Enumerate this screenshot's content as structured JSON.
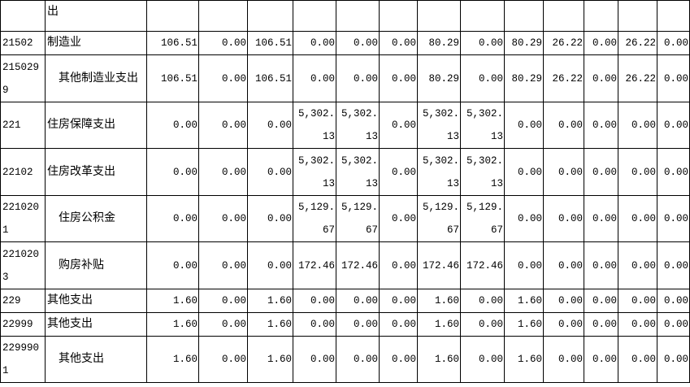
{
  "table": {
    "rows": [
      {
        "name": "出"
      },
      {
        "code": "21502",
        "name": "制造业",
        "values": [
          "106.51",
          "0.00",
          "106.51",
          "0.00",
          "0.00",
          "0.00",
          "80.29",
          "0.00",
          "80.29",
          "26.22",
          "0.00",
          "26.22",
          "0.00"
        ]
      },
      {
        "code": "2150299",
        "name": "其他制造业支出",
        "values": [
          "106.51",
          "0.00",
          "106.51",
          "0.00",
          "0.00",
          "0.00",
          "80.29",
          "0.00",
          "80.29",
          "26.22",
          "0.00",
          "26.22",
          "0.00"
        ]
      },
      {
        "code": "221",
        "name": "住房保障支出",
        "values": [
          "0.00",
          "0.00",
          "0.00",
          "5,302.13",
          "5,302.13",
          "0.00",
          "5,302.13",
          "5,302.13",
          "0.00",
          "0.00",
          "0.00",
          "0.00",
          "0.00"
        ]
      },
      {
        "code": "22102",
        "name": "住房改革支出",
        "values": [
          "0.00",
          "0.00",
          "0.00",
          "5,302.13",
          "5,302.13",
          "0.00",
          "5,302.13",
          "5,302.13",
          "0.00",
          "0.00",
          "0.00",
          "0.00",
          "0.00"
        ]
      },
      {
        "code": "2210201",
        "name": "住房公积金",
        "values": [
          "0.00",
          "0.00",
          "0.00",
          "5,129.67",
          "5,129.67",
          "0.00",
          "5,129.67",
          "5,129.67",
          "0.00",
          "0.00",
          "0.00",
          "0.00",
          "0.00"
        ]
      },
      {
        "code": "2210203",
        "name": "购房补贴",
        "values": [
          "0.00",
          "0.00",
          "0.00",
          "172.46",
          "172.46",
          "0.00",
          "172.46",
          "172.46",
          "0.00",
          "0.00",
          "0.00",
          "0.00",
          "0.00"
        ]
      },
      {
        "code": "229",
        "name": "其他支出",
        "values": [
          "1.60",
          "0.00",
          "1.60",
          "0.00",
          "0.00",
          "0.00",
          "1.60",
          "0.00",
          "1.60",
          "0.00",
          "0.00",
          "0.00",
          "0.00"
        ]
      },
      {
        "code": "22999",
        "name": "其他支出",
        "values": [
          "1.60",
          "0.00",
          "1.60",
          "0.00",
          "0.00",
          "0.00",
          "1.60",
          "0.00",
          "1.60",
          "0.00",
          "0.00",
          "0.00",
          "0.00"
        ]
      },
      {
        "code": "2299901",
        "name": "其他支出",
        "values": [
          "1.60",
          "0.00",
          "1.60",
          "0.00",
          "0.00",
          "0.00",
          "1.60",
          "0.00",
          "1.60",
          "0.00",
          "0.00",
          "0.00",
          "0.00"
        ]
      }
    ]
  }
}
